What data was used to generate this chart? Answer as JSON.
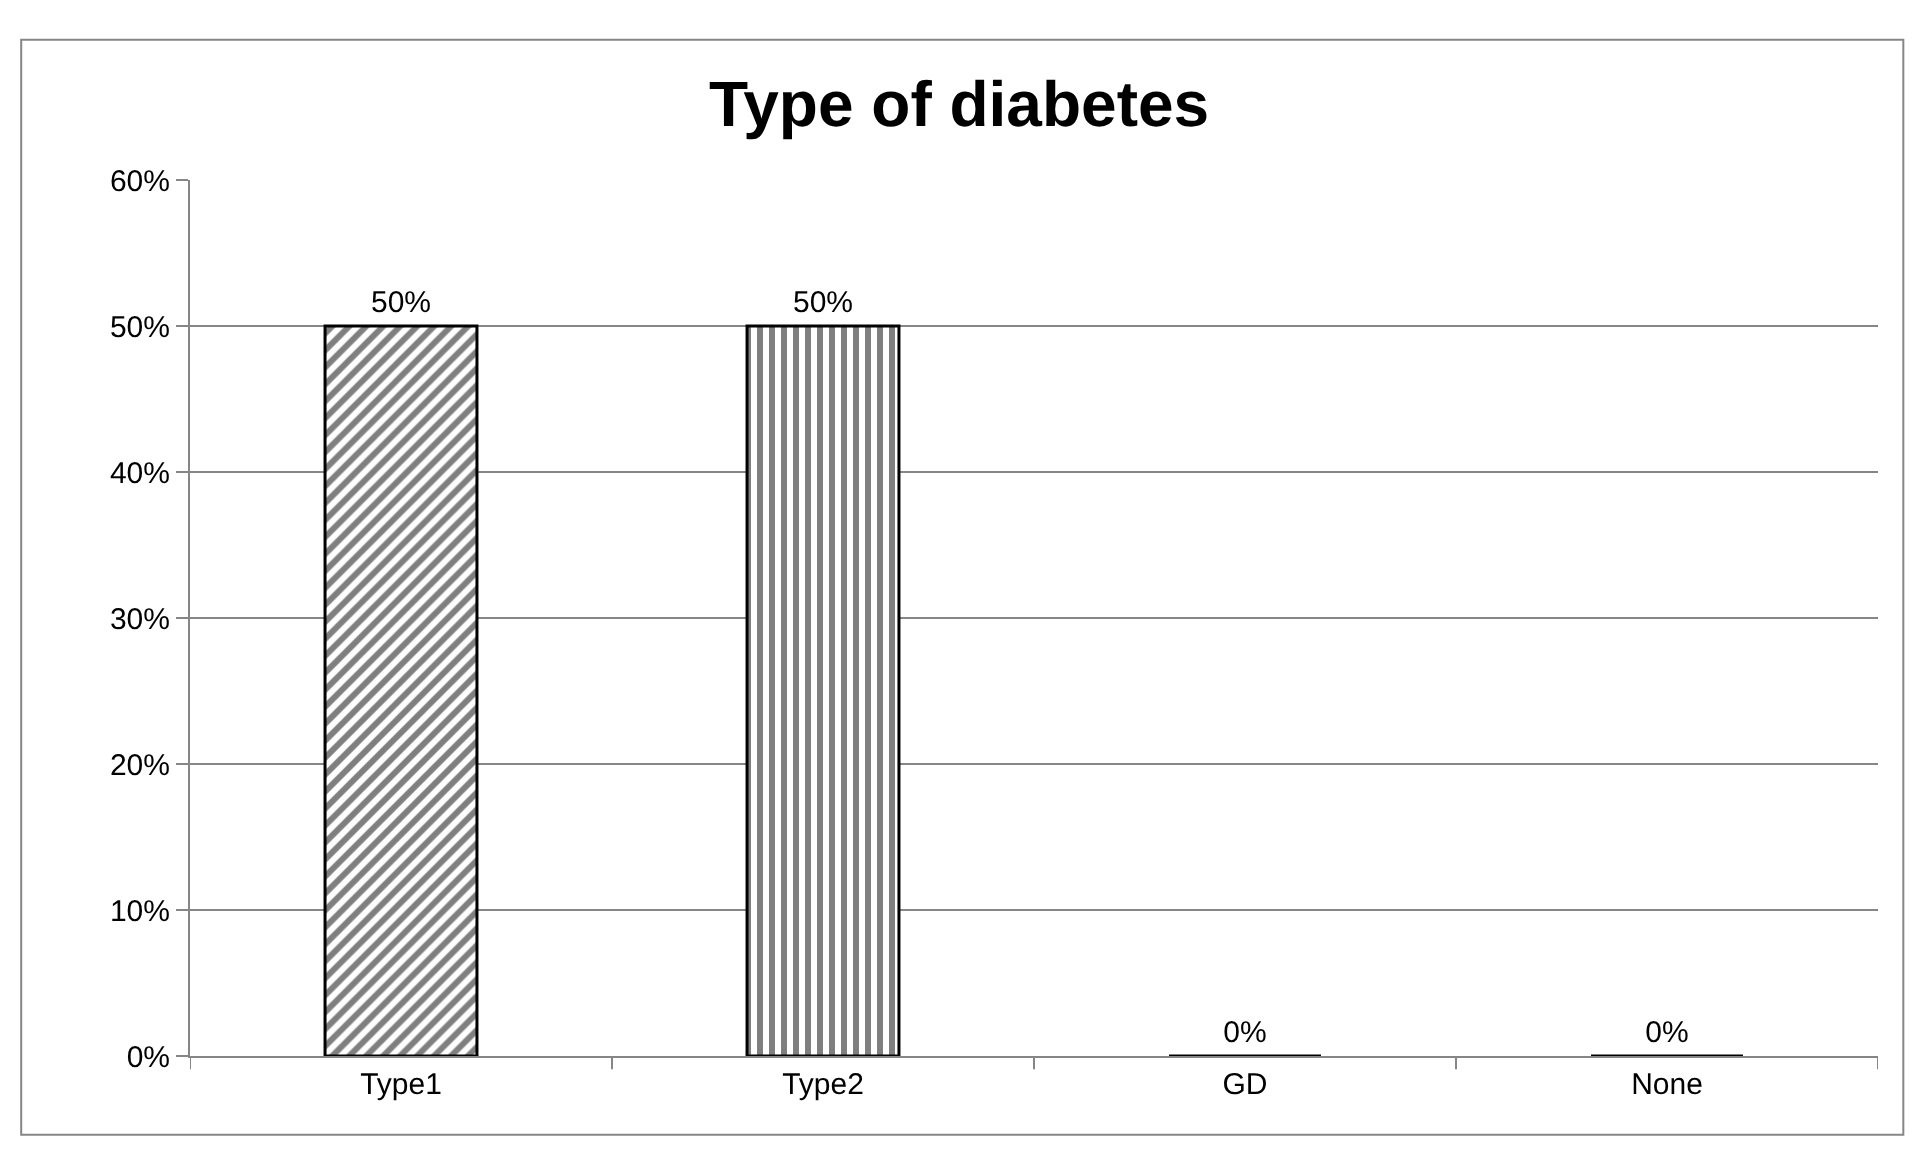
{
  "chart_data": {
    "type": "bar",
    "title": "Type of diabetes",
    "categories": [
      "Type1",
      "Type2",
      "GD",
      "None"
    ],
    "values": [
      50,
      50,
      0,
      0
    ],
    "colors": [
      "#000000",
      "#000000",
      "#000000",
      "#000000"
    ],
    "value_labels": [
      "50%",
      "50%",
      "0%",
      "0%"
    ],
    "ylim": [
      0,
      60
    ],
    "yticks": [
      {
        "value": 0,
        "label": "0%"
      },
      {
        "value": 10,
        "label": "10%"
      },
      {
        "value": 20,
        "label": "20%"
      },
      {
        "value": 30,
        "label": "30%"
      },
      {
        "value": 40,
        "label": "40%"
      },
      {
        "value": 50,
        "label": "50%"
      },
      {
        "value": 60,
        "label": "60%"
      }
    ],
    "grid": "y"
  }
}
